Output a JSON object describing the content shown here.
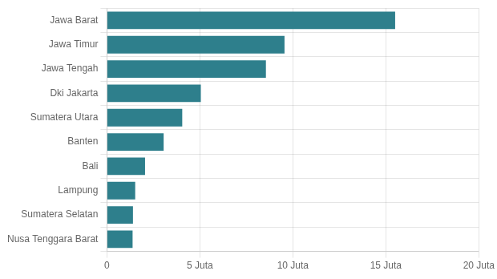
{
  "chart_data": {
    "type": "bar",
    "orientation": "horizontal",
    "categories": [
      "Nusa Tenggara Barat",
      "Sumatera Selatan",
      "Lampung",
      "Bali",
      "Banten",
      "Sumatera Utara",
      "Dki Jakarta",
      "Jawa Tengah",
      "Jawa Timur",
      "Jawa Barat"
    ],
    "values": [
      1.38,
      1.4,
      1.52,
      2.05,
      3.05,
      4.05,
      5.05,
      8.55,
      9.55,
      15.5
    ],
    "color": "#2e7f8c",
    "xlim": [
      0,
      20
    ],
    "xticks": [
      0,
      {
        "value": 5,
        "label": "5 Juta"
      },
      {
        "value": 10,
        "label": "10 Juta"
      },
      {
        "value": 15,
        "label": "15 Juta"
      },
      {
        "value": 20,
        "label": "20 Juta"
      }
    ],
    "grid": true
  }
}
